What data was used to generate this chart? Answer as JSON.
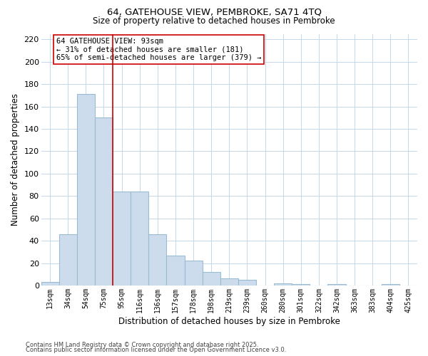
{
  "title1": "64, GATEHOUSE VIEW, PEMBROKE, SA71 4TQ",
  "title2": "Size of property relative to detached houses in Pembroke",
  "xlabel": "Distribution of detached houses by size in Pembroke",
  "ylabel": "Number of detached properties",
  "bar_labels": [
    "13sqm",
    "34sqm",
    "54sqm",
    "75sqm",
    "95sqm",
    "116sqm",
    "136sqm",
    "157sqm",
    "178sqm",
    "198sqm",
    "219sqm",
    "239sqm",
    "260sqm",
    "280sqm",
    "301sqm",
    "322sqm",
    "342sqm",
    "363sqm",
    "383sqm",
    "404sqm",
    "425sqm"
  ],
  "bar_values": [
    3,
    46,
    171,
    150,
    84,
    84,
    46,
    27,
    22,
    12,
    6,
    5,
    0,
    2,
    1,
    0,
    1,
    0,
    0,
    1,
    0
  ],
  "bar_color": "#ccdcec",
  "bar_edgecolor": "#98bcd4",
  "vline_color": "#cc0000",
  "vline_index": 3.5,
  "annotation_text": "64 GATEHOUSE VIEW: 93sqm\n← 31% of detached houses are smaller (181)\n65% of semi-detached houses are larger (379) →",
  "annotation_box_color": "#ffffff",
  "annotation_box_edgecolor": "#cc0000",
  "ylim": [
    0,
    225
  ],
  "yticks": [
    0,
    20,
    40,
    60,
    80,
    100,
    120,
    140,
    160,
    180,
    200,
    220
  ],
  "footnote1": "Contains HM Land Registry data © Crown copyright and database right 2025.",
  "footnote2": "Contains public sector information licensed under the Open Government Licence v3.0.",
  "background_color": "#ffffff",
  "grid_color": "#c5d8ea"
}
